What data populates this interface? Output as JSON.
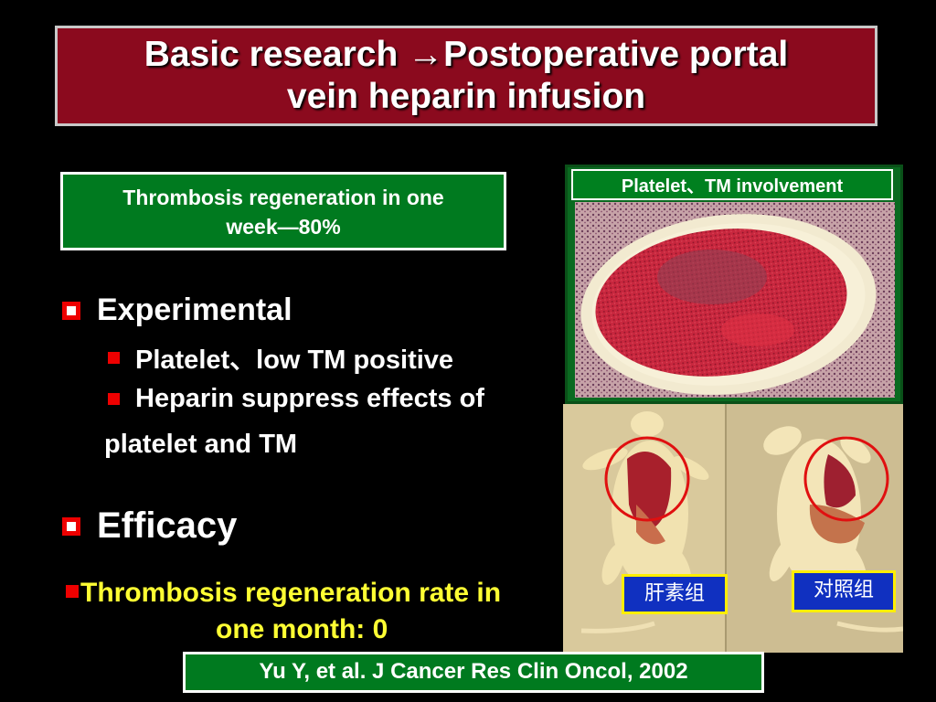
{
  "title": {
    "line1": "Basic research →Postoperative portal",
    "line2": "vein heparin infusion"
  },
  "stat_box": {
    "line1": "Thrombosis regeneration in one",
    "line2": "week—80%"
  },
  "experimental": {
    "heading": "Experimental",
    "items": [
      "Platelet、low TM positive",
      "Heparin suppress effects of"
    ],
    "continuation": "platelet and TM"
  },
  "efficacy": {
    "heading": "Efficacy",
    "line1": "Thrombosis regeneration rate in",
    "line2": "one month: 0"
  },
  "photo": {
    "caption": "Platelet、TM involvement"
  },
  "mice": {
    "left_label": "肝素组",
    "right_label": "对照组",
    "circle_color": "#e01010"
  },
  "citation": "Yu Y, et al.  J Cancer Res Clin Oncol, 2002",
  "colors": {
    "title_bg": "#8b0a1e",
    "box_green": "#007a1f",
    "bullet_red": "#e00000",
    "highlight_yellow": "#ffff33"
  }
}
